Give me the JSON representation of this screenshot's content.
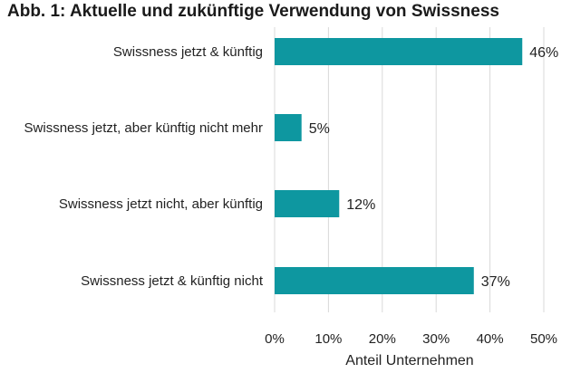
{
  "chart_data": {
    "type": "bar",
    "orientation": "horizontal",
    "title": "Abb. 1: Aktuelle und zukünftige Verwendung von Swissness",
    "xlabel": "Anteil Unternehmen",
    "ylabel": "",
    "categories": [
      "Swissness jetzt & künftig",
      "Swissness jetzt, aber künftig nicht mehr",
      "Swissness jetzt nicht, aber künftig",
      "Swissness jetzt & künftig nicht"
    ],
    "values": [
      46,
      5,
      12,
      37
    ],
    "value_labels": [
      "46%",
      "5%",
      "12%",
      "37%"
    ],
    "xlim": [
      0,
      50
    ],
    "xticks": [
      0,
      10,
      20,
      30,
      40,
      50
    ],
    "xtick_labels": [
      "0%",
      "10%",
      "20%",
      "30%",
      "40%",
      "50%"
    ],
    "grid": "vertical",
    "legend": "none",
    "bar_color": "#0E97A0",
    "grid_color": "#D9D9D9"
  }
}
